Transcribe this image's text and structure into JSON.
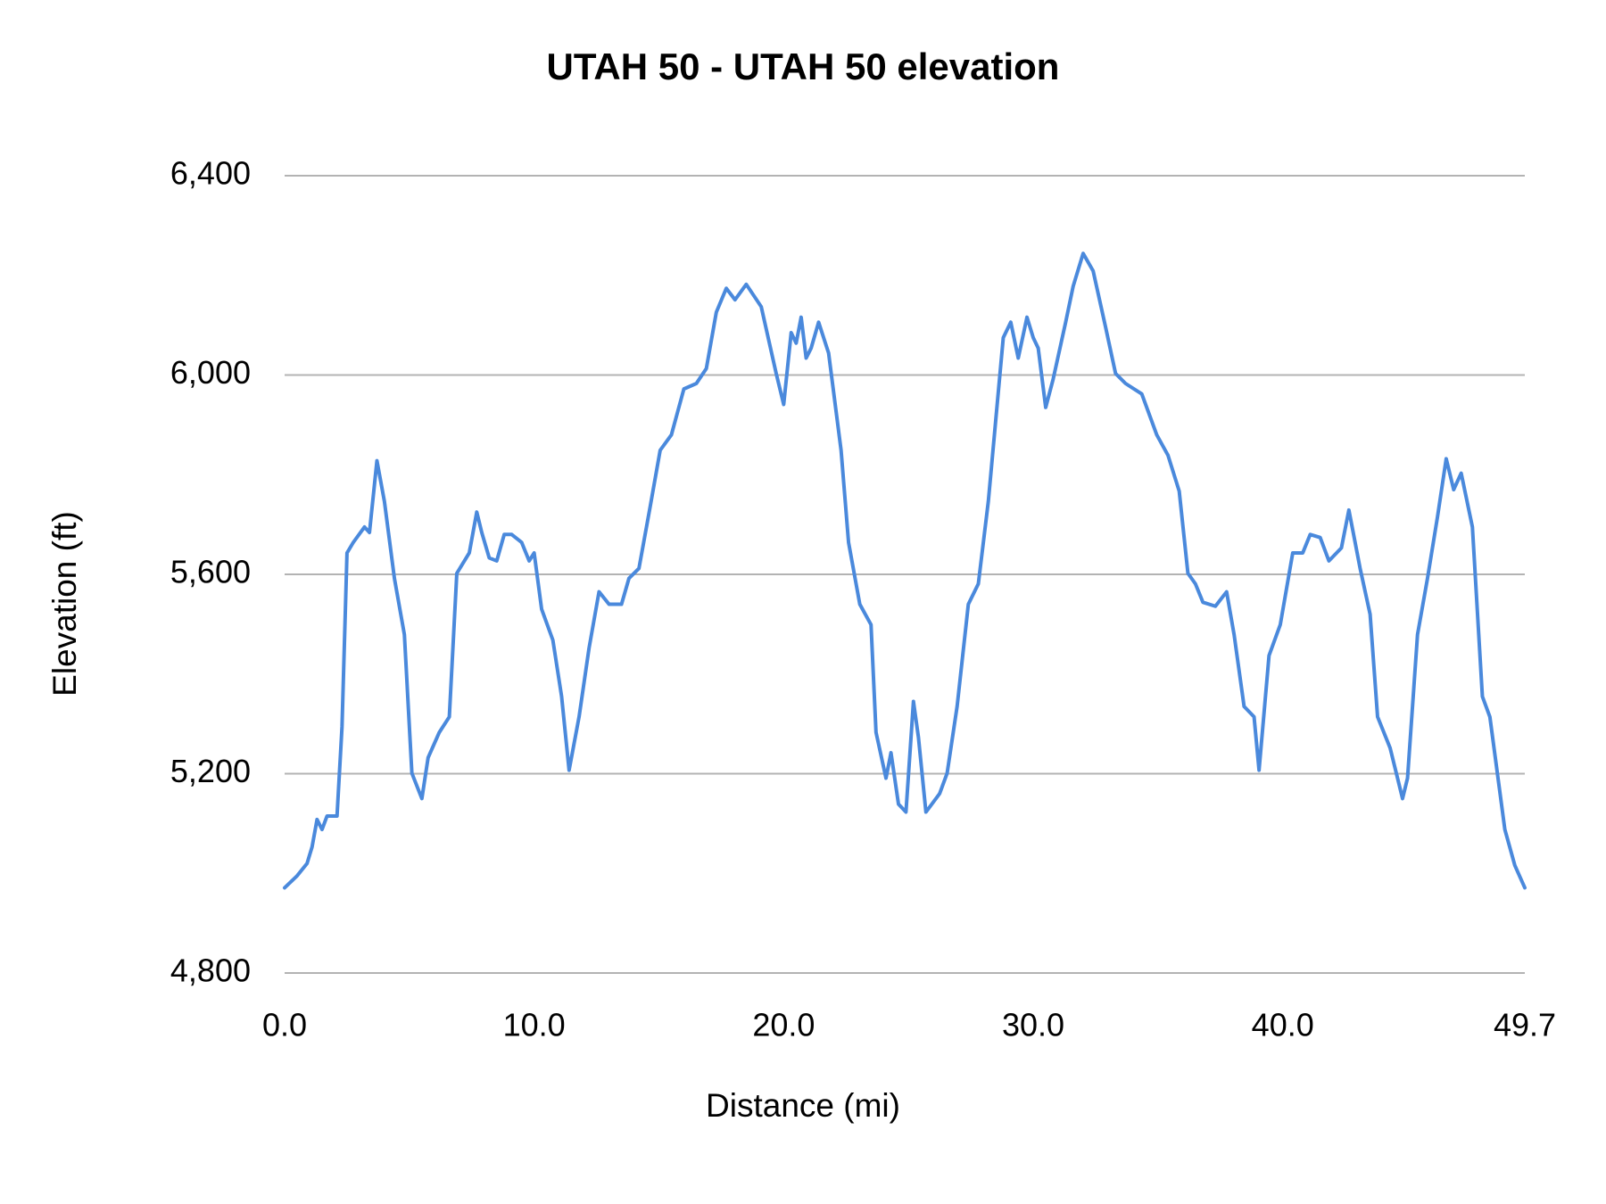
{
  "chart_data": {
    "type": "line",
    "title": "UTAH 50 - UTAH 50 elevation",
    "x_label": "Distance (mi)",
    "y_label": "Elevation (ft)",
    "xlim": [
      0,
      49.7
    ],
    "xticks": [
      {
        "value": 0,
        "label": "0.0"
      },
      {
        "value": 10,
        "label": "10.0"
      },
      {
        "value": 20,
        "label": "20.0"
      },
      {
        "value": 30,
        "label": "30.0"
      },
      {
        "value": 40,
        "label": "40.0"
      },
      49.7
    ],
    "ylim": [
      4800,
      6400
    ],
    "yticks": [
      {
        "value": 4800,
        "label": "4,800"
      },
      {
        "value": 5200,
        "label": "5,200"
      },
      {
        "value": 5600,
        "label": "5,600"
      },
      {
        "value": 6000,
        "label": "6,000"
      },
      {
        "value": 6400,
        "label": "6,400"
      }
    ],
    "grid": true,
    "x": [
      0,
      0.5,
      0.9,
      1.1,
      1.3,
      1.5,
      1.7,
      2.1,
      2.3,
      2.5,
      2.75,
      3.2,
      3.4,
      3.7,
      4.0,
      4.4,
      4.8,
      5.1,
      5.5,
      5.75,
      6.2,
      6.6,
      6.9,
      7.4,
      7.7,
      7.9,
      8.2,
      8.5,
      8.8,
      9.1,
      9.5,
      9.8,
      10.0,
      10.3,
      10.75,
      11.1,
      11.4,
      11.8,
      12.2,
      12.6,
      13.0,
      13.5,
      13.8,
      14.2,
      14.65,
      15.05,
      15.5,
      16.0,
      16.5,
      16.9,
      17.3,
      17.7,
      18.05,
      18.5,
      19.1,
      19.7,
      20.0,
      20.3,
      20.5,
      20.7,
      20.9,
      21.1,
      21.4,
      21.8,
      22.3,
      22.6,
      23.05,
      23.5,
      23.7,
      24.1,
      24.3,
      24.6,
      24.9,
      25.2,
      25.4,
      25.7,
      26.25,
      26.55,
      26.95,
      27.4,
      27.8,
      28.2,
      28.8,
      29.1,
      29.4,
      29.75,
      30.0,
      30.2,
      30.5,
      30.8,
      31.3,
      31.6,
      32.0,
      32.4,
      32.9,
      33.3,
      33.7,
      34.35,
      34.95,
      35.4,
      35.85,
      36.2,
      36.5,
      36.8,
      37.3,
      37.75,
      38.05,
      38.45,
      38.85,
      39.05,
      39.45,
      39.9,
      40.4,
      40.8,
      41.1,
      41.5,
      41.85,
      42.35,
      42.65,
      43.1,
      43.5,
      43.8,
      44.3,
      44.6,
      44.8,
      45.0,
      45.4,
      45.8,
      46.2,
      46.55,
      46.85,
      47.15,
      47.6,
      48.0,
      48.3,
      48.9,
      49.3,
      49.7
    ],
    "series": [
      {
        "name": "Elevation",
        "color": "#4a89dc",
        "values": [
          4971,
          4995,
          5020,
          5053,
          5108,
          5088,
          5115,
          5115,
          5294,
          5643,
          5664,
          5695,
          5684,
          5828,
          5746,
          5592,
          5479,
          5201,
          5150,
          5232,
          5283,
          5314,
          5602,
          5643,
          5725,
          5684,
          5633,
          5627,
          5680,
          5680,
          5664,
          5627,
          5643,
          5530,
          5468,
          5355,
          5207,
          5314,
          5452,
          5565,
          5540,
          5540,
          5592,
          5612,
          5736,
          5849,
          5880,
          5972,
          5983,
          6013,
          6126,
          6174,
          6151,
          6182,
          6137,
          6003,
          5941,
          6085,
          6064,
          6116,
          6034,
          6054,
          6106,
          6044,
          5849,
          5664,
          5540,
          5499,
          5283,
          5191,
          5242,
          5139,
          5123,
          5345,
          5273,
          5123,
          5160,
          5201,
          5335,
          5540,
          5581,
          5746,
          6075,
          6106,
          6034,
          6116,
          6075,
          6054,
          5935,
          5992,
          6106,
          6178,
          6244,
          6209,
          6096,
          6003,
          5983,
          5962,
          5880,
          5839,
          5767,
          5602,
          5581,
          5544,
          5536,
          5565,
          5479,
          5335,
          5314,
          5207,
          5437,
          5499,
          5643,
          5643,
          5680,
          5674,
          5627,
          5653,
          5729,
          5612,
          5520,
          5314,
          5252,
          5191,
          5150,
          5191,
          5479,
          5592,
          5715,
          5832,
          5770,
          5803,
          5695,
          5355,
          5314,
          5088,
          5016,
          4971
        ]
      }
    ]
  }
}
